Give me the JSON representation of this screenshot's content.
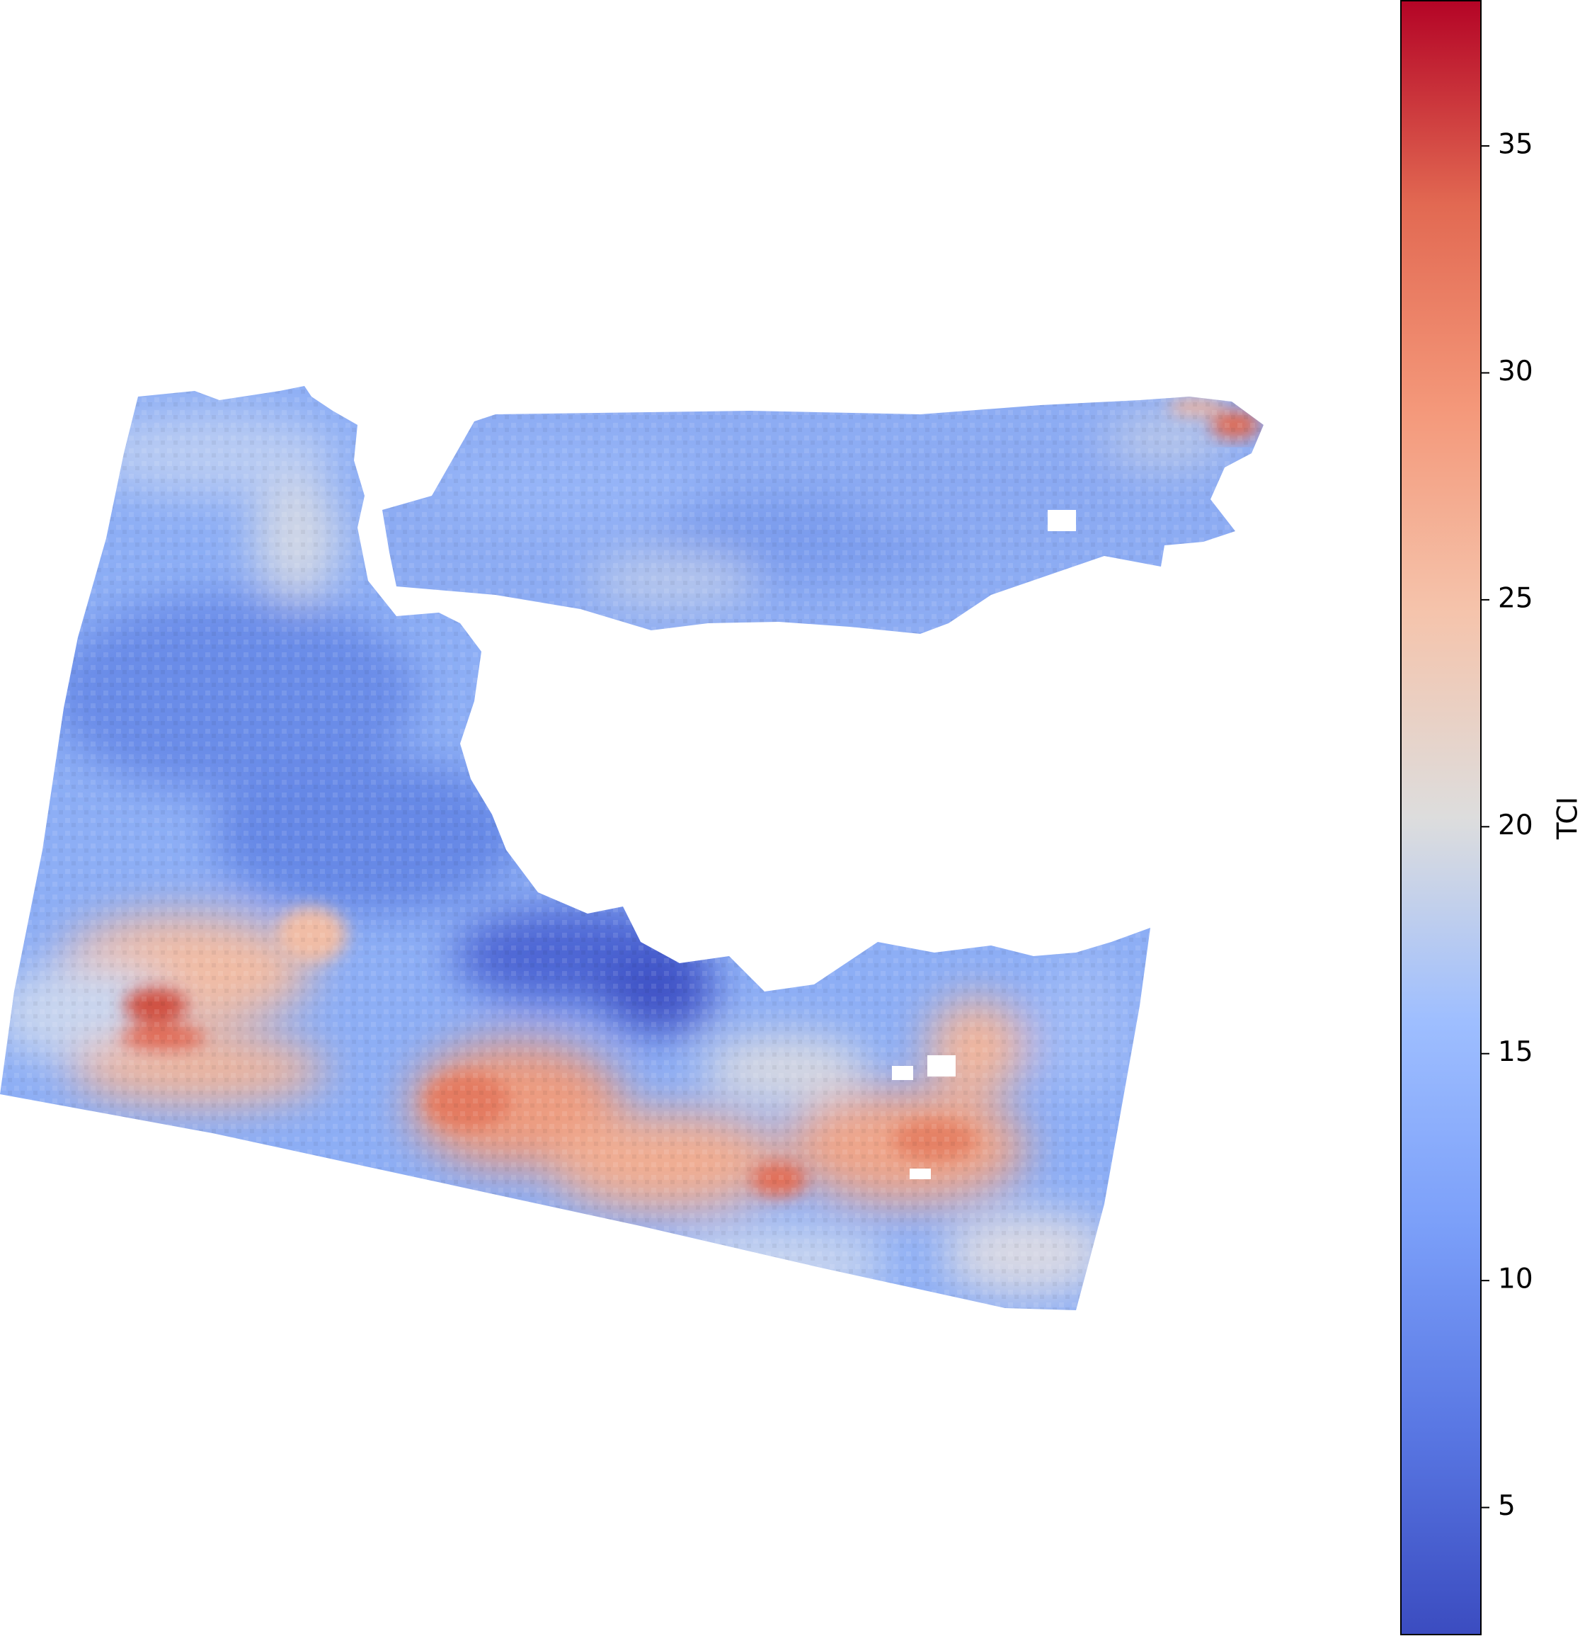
{
  "colorbar": {
    "label": "TCI",
    "colormap": "coolwarm",
    "min": 2.2,
    "max": 38.2,
    "ticks": [
      5,
      10,
      15,
      20,
      25,
      30,
      35
    ],
    "tick_labels": [
      "5",
      "10",
      "15",
      "20",
      "25",
      "30",
      "35"
    ]
  },
  "colors": {
    "low": "#3b4cc0",
    "mid": "#dddddd",
    "high": "#b40426",
    "background": "#ffffff"
  }
}
